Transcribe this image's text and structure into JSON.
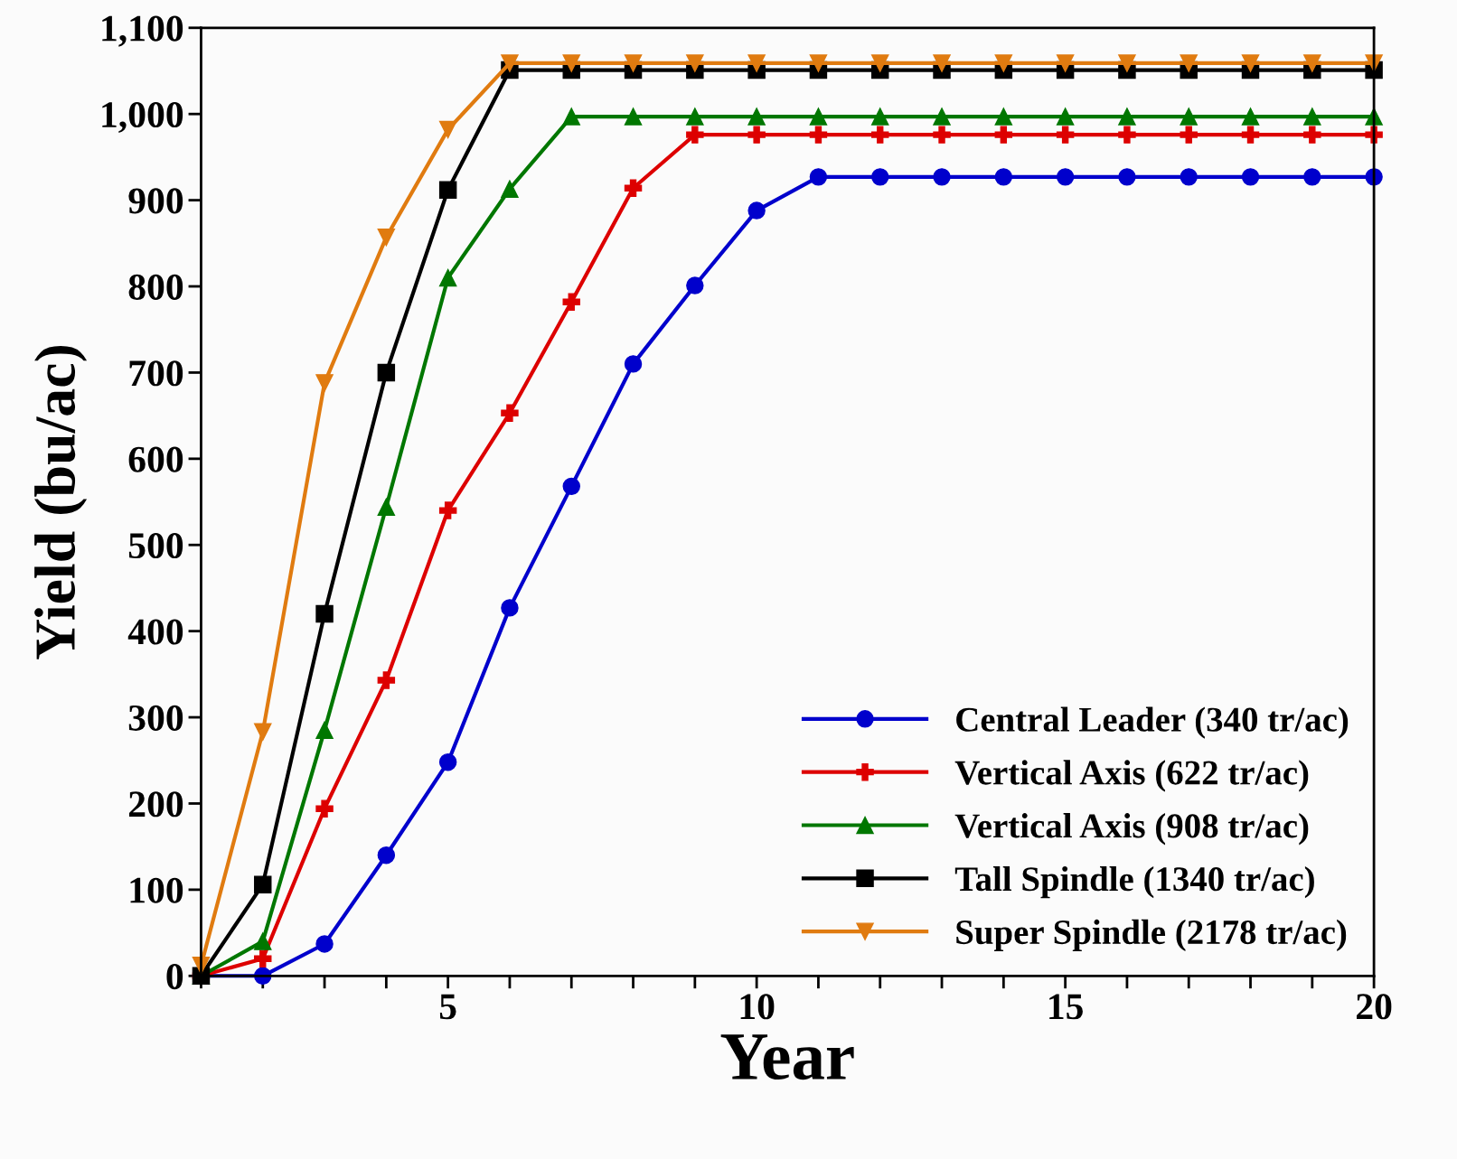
{
  "chart_data": {
    "type": "line",
    "xlabel": "Year",
    "ylabel": "Yield (bu/ac)",
    "x": [
      1,
      2,
      3,
      4,
      5,
      6,
      7,
      8,
      9,
      10,
      11,
      12,
      13,
      14,
      15,
      16,
      17,
      18,
      19,
      20
    ],
    "series": [
      {
        "name": "Central Leader (340 tr/ac)",
        "color": "#0000cc",
        "marker": "circle",
        "values": [
          0,
          0,
          37,
          140,
          248,
          427,
          568,
          710,
          801,
          888,
          927,
          927,
          927,
          927,
          927,
          927,
          927,
          927,
          927,
          927
        ]
      },
      {
        "name": "Vertical Axis (622 tr/ac)",
        "color": "#dd0000",
        "marker": "cross",
        "values": [
          0,
          20,
          194,
          343,
          540,
          653,
          782,
          914,
          976,
          976,
          976,
          976,
          976,
          976,
          976,
          976,
          976,
          976,
          976,
          976
        ]
      },
      {
        "name": "Vertical Axis (908 tr/ac)",
        "color": "#007700",
        "marker": "triangle",
        "values": [
          0,
          40,
          285,
          544,
          810,
          913,
          997,
          997,
          997,
          997,
          997,
          997,
          997,
          997,
          997,
          997,
          997,
          997,
          997,
          997
        ]
      },
      {
        "name": "Tall Spindle (1340 tr/ac)",
        "color": "#000000",
        "marker": "square",
        "values": [
          0,
          106,
          420,
          700,
          912,
          1051,
          1051,
          1051,
          1051,
          1051,
          1051,
          1051,
          1051,
          1051,
          1051,
          1051,
          1051,
          1051,
          1051,
          1051
        ]
      },
      {
        "name": "Super Spindle (2178 tr/ac)",
        "color": "#e07b10",
        "marker": "triangle_down",
        "values": [
          12,
          283,
          688,
          857,
          982,
          1059,
          1059,
          1059,
          1059,
          1059,
          1059,
          1059,
          1059,
          1059,
          1059,
          1059,
          1059,
          1059,
          1059,
          1059
        ]
      }
    ],
    "xlim": [
      1,
      20
    ],
    "xticks": [
      {
        "value": 1,
        "label": null
      },
      {
        "value": 2,
        "label": null
      },
      {
        "value": 3,
        "label": null
      },
      {
        "value": 4,
        "label": null
      },
      5,
      {
        "value": 6,
        "label": null
      },
      {
        "value": 7,
        "label": null
      },
      {
        "value": 8,
        "label": null
      },
      {
        "value": 9,
        "label": null
      },
      10,
      {
        "value": 11,
        "label": null
      },
      {
        "value": 12,
        "label": null
      },
      {
        "value": 13,
        "label": null
      },
      {
        "value": 14,
        "label": null
      },
      15,
      {
        "value": 16,
        "label": null
      },
      {
        "value": 17,
        "label": null
      },
      {
        "value": 18,
        "label": null
      },
      {
        "value": 19,
        "label": null
      },
      20
    ],
    "ylim": [
      0,
      1100
    ],
    "yticks": [
      0,
      {
        "value": 100,
        "label": "100"
      },
      {
        "value": 200,
        "label": "200"
      },
      300,
      400,
      500,
      600,
      700,
      800,
      900,
      {
        "value": 1000,
        "label": "1,000"
      },
      {
        "value": 1100,
        "label": "1,100"
      }
    ],
    "grid": false,
    "legend": "bottom right",
    "line_style": "solid"
  }
}
